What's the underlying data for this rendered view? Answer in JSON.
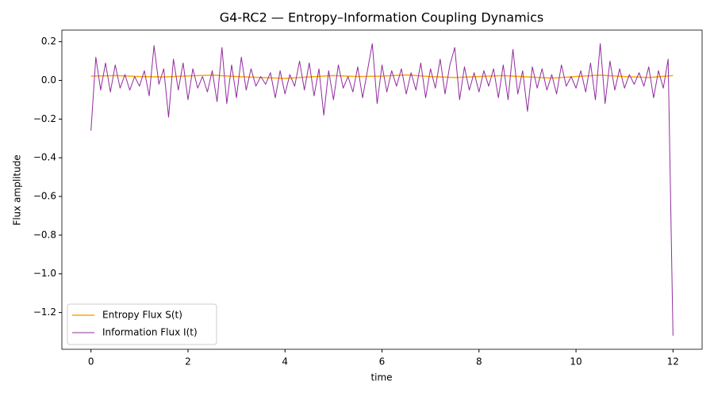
{
  "chart_data": {
    "type": "line",
    "title": "G4-RC2 — Entropy–Information Coupling Dynamics",
    "xlabel": "time",
    "ylabel": "Flux amplitude",
    "xlim": [
      -0.6,
      12.6
    ],
    "xticks": [
      0,
      2,
      4,
      6,
      8,
      10,
      12
    ],
    "ylim": [
      -1.39,
      0.26
    ],
    "yticks": [
      {
        "value": -1.2,
        "label": "−1.2"
      },
      {
        "value": -1.0,
        "label": "−1.0"
      },
      {
        "value": -0.8,
        "label": "−0.8"
      },
      {
        "value": -0.6,
        "label": "−0.6"
      },
      {
        "value": -0.4,
        "label": "−0.4"
      },
      {
        "value": -0.2,
        "label": "−0.2"
      },
      {
        "value": 0,
        "label": "0.0"
      },
      0.2
    ],
    "grid": false,
    "legend": "lower left",
    "series": [
      {
        "name": "Entropy Flux S(t)",
        "color": "#ffa500",
        "width": 1.5,
        "x": [
          0,
          0.5,
          1,
          1.5,
          2,
          2.5,
          3,
          3.5,
          4,
          4.5,
          5,
          5.5,
          6,
          6.5,
          7,
          7.5,
          8,
          8.5,
          9,
          9.5,
          10,
          10.5,
          11,
          11.5,
          12
        ],
        "values": [
          0.022,
          0.025,
          0.02,
          0.018,
          0.023,
          0.027,
          0.02,
          0.015,
          0.01,
          0.018,
          0.025,
          0.02,
          0.022,
          0.028,
          0.02,
          0.015,
          0.02,
          0.025,
          0.018,
          0.012,
          0.02,
          0.027,
          0.02,
          0.015,
          0.025
        ]
      },
      {
        "name": "Information Flux I(t)",
        "color": "#912c9e",
        "width": 1,
        "x": [
          0,
          0.1,
          0.2,
          0.3,
          0.4,
          0.5,
          0.6,
          0.7,
          0.8,
          0.9,
          1,
          1.1,
          1.2,
          1.3,
          1.4,
          1.5,
          1.6,
          1.7,
          1.8,
          1.9,
          2,
          2.1,
          2.2,
          2.3,
          2.4,
          2.5,
          2.6,
          2.7,
          2.8,
          2.9,
          3,
          3.1,
          3.2,
          3.3,
          3.4,
          3.5,
          3.6,
          3.7,
          3.8,
          3.9,
          4,
          4.1,
          4.2,
          4.3,
          4.4,
          4.5,
          4.6,
          4.7,
          4.8,
          4.9,
          5,
          5.1,
          5.2,
          5.3,
          5.4,
          5.5,
          5.6,
          5.7,
          5.8,
          5.9,
          6,
          6.1,
          6.2,
          6.3,
          6.4,
          6.5,
          6.6,
          6.7,
          6.8,
          6.9,
          7,
          7.1,
          7.2,
          7.3,
          7.4,
          7.5,
          7.6,
          7.7,
          7.8,
          7.9,
          8,
          8.1,
          8.2,
          8.3,
          8.4,
          8.5,
          8.6,
          8.7,
          8.8,
          8.9,
          9,
          9.1,
          9.2,
          9.3,
          9.4,
          9.5,
          9.6,
          9.7,
          9.8,
          9.9,
          10,
          10.1,
          10.2,
          10.3,
          10.4,
          10.5,
          10.6,
          10.7,
          10.8,
          10.9,
          11,
          11.1,
          11.2,
          11.3,
          11.4,
          11.5,
          11.6,
          11.7,
          11.8,
          11.9,
          12
        ],
        "values": [
          -0.26,
          0.12,
          -0.05,
          0.09,
          -0.06,
          0.08,
          -0.04,
          0.03,
          -0.05,
          0.02,
          -0.03,
          0.05,
          -0.08,
          0.18,
          -0.02,
          0.06,
          -0.19,
          0.11,
          -0.05,
          0.09,
          -0.1,
          0.06,
          -0.04,
          0.02,
          -0.06,
          0.05,
          -0.11,
          0.17,
          -0.12,
          0.08,
          -0.09,
          0.12,
          -0.05,
          0.06,
          -0.03,
          0.02,
          -0.02,
          0.04,
          -0.09,
          0.05,
          -0.07,
          0.03,
          -0.03,
          0.1,
          -0.05,
          0.09,
          -0.08,
          0.06,
          -0.18,
          0.05,
          -0.1,
          0.08,
          -0.04,
          0.02,
          -0.06,
          0.07,
          -0.09,
          0.05,
          0.19,
          -0.12,
          0.08,
          -0.06,
          0.05,
          -0.03,
          0.06,
          -0.07,
          0.04,
          -0.05,
          0.09,
          -0.09,
          0.06,
          -0.04,
          0.11,
          -0.07,
          0.08,
          0.17,
          -0.1,
          0.07,
          -0.05,
          0.04,
          -0.06,
          0.05,
          -0.03,
          0.06,
          -0.09,
          0.08,
          -0.1,
          0.16,
          -0.07,
          0.05,
          -0.16,
          0.07,
          -0.04,
          0.06,
          -0.05,
          0.03,
          -0.07,
          0.08,
          -0.03,
          0.02,
          -0.04,
          0.05,
          -0.06,
          0.09,
          -0.1,
          0.19,
          -0.12,
          0.1,
          -0.05,
          0.06,
          -0.04,
          0.03,
          -0.02,
          0.04,
          -0.03,
          0.07,
          -0.09,
          0.05,
          -0.04,
          0.11,
          -1.32
        ]
      }
    ]
  }
}
